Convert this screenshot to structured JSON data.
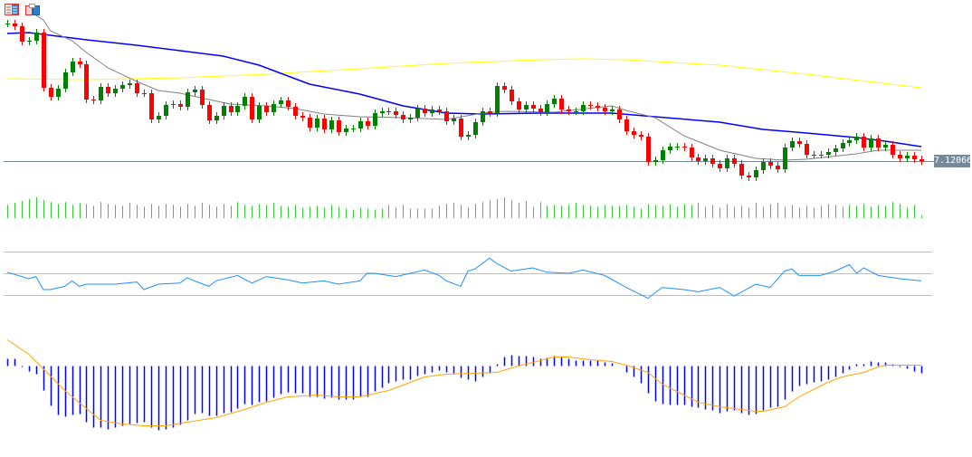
{
  "colors": {
    "bull": "#008000",
    "bear": "#ff0000",
    "ma_fast": "#808080",
    "ma_mid": "#0000ff",
    "ma_long": "#ffff00",
    "volume": "#32cd32",
    "rsi": "#1e90ff",
    "rsi_levels": "#c0c0c0",
    "macd_hist": "#0000ff",
    "macd_signal": "#ffa500",
    "price_line": "#778899"
  },
  "toolbar": {
    "icons": [
      "chart-window-icon",
      "tile-windows-icon"
    ]
  },
  "chart_data": {
    "type": "candlestick",
    "main": {
      "ylim": [
        7.1123,
        7.1563
      ],
      "current_price_label": "7.12066",
      "current_price": 7.12066,
      "close": [
        7.1511,
        7.1505,
        7.1471,
        7.1473,
        7.1491,
        7.1369,
        7.1349,
        7.1367,
        7.1403,
        7.1427,
        7.1421,
        7.1343,
        7.1341,
        7.1371,
        7.1357,
        7.1367,
        7.1375,
        7.1379,
        7.1357,
        7.1357,
        7.1299,
        7.1307,
        7.1331,
        7.1333,
        7.1327,
        7.1359,
        7.1365,
        7.1331,
        7.1297,
        7.1307,
        7.1329,
        7.1315,
        7.1329,
        7.1349,
        7.1299,
        7.1329,
        7.1315,
        7.1333,
        7.1341,
        7.1327,
        7.1307,
        7.1303,
        7.1281,
        7.1301,
        7.1277,
        7.1297,
        7.1271,
        7.1279,
        7.1279,
        7.1295,
        7.1285,
        7.1313,
        7.1317,
        7.1317,
        7.1309,
        7.1299,
        7.1303,
        7.1323,
        7.1313,
        7.1321,
        7.1317,
        7.1295,
        7.1301,
        7.1261,
        7.1265,
        7.1293,
        7.1317,
        7.1313,
        7.1373,
        7.1365,
        7.1339,
        7.1321,
        7.1331,
        7.1323,
        7.1315,
        7.1333,
        7.1345,
        7.1321,
        7.1317,
        7.1317,
        7.1331,
        7.1329,
        7.1325,
        7.1317,
        7.1321,
        7.1299,
        7.1273,
        7.1265,
        7.1261,
        7.1205,
        7.1209,
        7.1231,
        7.1239,
        7.1239,
        7.1237,
        7.1215,
        7.1207,
        7.1213,
        7.1201,
        7.1191,
        7.1213,
        7.1201,
        7.1175,
        7.1171,
        7.1187,
        7.1205,
        7.1197,
        7.1189,
        7.1237,
        7.1251,
        7.1245,
        7.1221,
        7.1221,
        7.1221,
        7.1227,
        7.1235,
        7.1247,
        7.1253,
        7.1261,
        7.1237,
        7.1257,
        7.1237,
        7.1243,
        7.1221,
        7.1213,
        7.1219,
        7.1211,
        7.12066
      ],
      "ma_fast": [
        [
          4,
          7.1529
        ],
        [
          5,
          7.1519
        ],
        [
          6,
          7.1495
        ],
        [
          9,
          7.1473
        ],
        [
          11,
          7.1447
        ],
        [
          14,
          7.1413
        ],
        [
          18,
          7.1383
        ],
        [
          21,
          7.1363
        ],
        [
          24,
          7.1357
        ],
        [
          28,
          7.1343
        ],
        [
          31,
          7.1333
        ],
        [
          36,
          7.1329
        ],
        [
          40,
          7.1323
        ],
        [
          44,
          7.1311
        ],
        [
          49,
          7.1305
        ],
        [
          55,
          7.1303
        ],
        [
          61,
          7.1299
        ],
        [
          66,
          7.1313
        ],
        [
          69,
          7.1317
        ],
        [
          76,
          7.1315
        ],
        [
          84,
          7.1329
        ],
        [
          86,
          7.1319
        ],
        [
          90,
          7.1303
        ],
        [
          94,
          7.1263
        ],
        [
          99,
          7.1231
        ],
        [
          104,
          7.1213
        ],
        [
          108,
          7.1209
        ],
        [
          111,
          7.1211
        ],
        [
          118,
          7.1223
        ],
        [
          121,
          7.1231
        ],
        [
          127,
          7.1231
        ]
      ],
      "ma_mid": [
        [
          0,
          7.1489
        ],
        [
          3,
          7.1491
        ],
        [
          5,
          7.1487
        ],
        [
          11,
          7.1475
        ],
        [
          18,
          7.1463
        ],
        [
          24,
          7.1451
        ],
        [
          30,
          7.1439
        ],
        [
          35,
          7.1419
        ],
        [
          39,
          7.1395
        ],
        [
          42,
          7.1377
        ],
        [
          49,
          7.1355
        ],
        [
          55,
          7.1329
        ],
        [
          61,
          7.1313
        ],
        [
          66,
          7.1311
        ],
        [
          74,
          7.1313
        ],
        [
          84,
          7.1313
        ],
        [
          90,
          7.1305
        ],
        [
          99,
          7.1293
        ],
        [
          105,
          7.1277
        ],
        [
          111,
          7.1269
        ],
        [
          118,
          7.1259
        ],
        [
          122,
          7.1251
        ],
        [
          127,
          7.1239
        ]
      ],
      "ma_long": [
        [
          0,
          7.1389
        ],
        [
          11,
          7.1387
        ],
        [
          24,
          7.1391
        ],
        [
          36,
          7.1399
        ],
        [
          49,
          7.1411
        ],
        [
          61,
          7.1423
        ],
        [
          74,
          7.1431
        ],
        [
          80,
          7.1433
        ],
        [
          86,
          7.1431
        ],
        [
          99,
          7.1419
        ],
        [
          111,
          7.1399
        ],
        [
          127,
          7.1369
        ]
      ]
    },
    "volume": [
      14,
      16,
      18,
      20,
      22,
      19,
      17,
      15,
      17,
      14,
      16,
      15,
      13,
      17,
      15,
      14,
      13,
      16,
      14,
      12,
      15,
      13,
      15,
      14,
      12,
      15,
      13,
      16,
      14,
      12,
      15,
      13,
      17,
      14,
      13,
      15,
      14,
      16,
      13,
      12,
      14,
      11,
      12,
      13,
      11,
      14,
      12,
      10,
      9,
      11,
      10,
      9,
      10,
      14,
      11,
      14,
      10,
      10,
      10,
      10,
      13,
      15,
      16,
      14,
      11,
      15,
      17,
      19,
      20,
      22,
      19,
      16,
      18,
      12,
      17,
      13,
      14,
      13,
      14,
      16,
      14,
      13,
      12,
      14,
      13,
      13,
      14,
      12,
      10,
      15,
      14,
      13,
      15,
      12,
      15,
      14,
      16,
      12,
      14,
      11,
      15,
      12,
      13,
      11,
      16,
      12,
      15,
      16,
      12,
      14,
      11,
      13,
      11,
      13,
      15,
      14,
      12,
      14,
      13,
      15,
      12,
      14,
      13,
      17,
      15,
      11,
      14,
      3
    ],
    "rsi": {
      "levels": [
        70,
        50,
        30
      ],
      "ylim": [
        10,
        90
      ],
      "points": [
        [
          0,
          51
        ],
        [
          3,
          45
        ],
        [
          4,
          47
        ],
        [
          5,
          35
        ],
        [
          6,
          35
        ],
        [
          8,
          38
        ],
        [
          9,
          43
        ],
        [
          10,
          38
        ],
        [
          11,
          40
        ],
        [
          15,
          40
        ],
        [
          18,
          42
        ],
        [
          19,
          35
        ],
        [
          21,
          40
        ],
        [
          24,
          41
        ],
        [
          25,
          46
        ],
        [
          26,
          43
        ],
        [
          28,
          38
        ],
        [
          29,
          43
        ],
        [
          32,
          48
        ],
        [
          34,
          41
        ],
        [
          36,
          47
        ],
        [
          39,
          44
        ],
        [
          41,
          41
        ],
        [
          44,
          43
        ],
        [
          46,
          40
        ],
        [
          49,
          43
        ],
        [
          50,
          50
        ],
        [
          51,
          50
        ],
        [
          54,
          47
        ],
        [
          58,
          53
        ],
        [
          60,
          48
        ],
        [
          61,
          43
        ],
        [
          63,
          38
        ],
        [
          64,
          52
        ],
        [
          65,
          54
        ],
        [
          67,
          64
        ],
        [
          68,
          59
        ],
        [
          70,
          52
        ],
        [
          73,
          55
        ],
        [
          75,
          51
        ],
        [
          78,
          50
        ],
        [
          80,
          53
        ],
        [
          83,
          48
        ],
        [
          86,
          37
        ],
        [
          89,
          27
        ],
        [
          91,
          37
        ],
        [
          94,
          35
        ],
        [
          96,
          33
        ],
        [
          99,
          37
        ],
        [
          101,
          29
        ],
        [
          104,
          40
        ],
        [
          106,
          37
        ],
        [
          108,
          52
        ],
        [
          109,
          54
        ],
        [
          110,
          48
        ],
        [
          113,
          48
        ],
        [
          115,
          52
        ],
        [
          117,
          58
        ],
        [
          118,
          50
        ],
        [
          119,
          55
        ],
        [
          121,
          48
        ],
        [
          124,
          45
        ],
        [
          127,
          43
        ]
      ]
    },
    "macd": {
      "unit": "1e-5",
      "histogram": [
        8,
        8,
        -1,
        -6,
        -9,
        -27,
        -44,
        -54,
        -56,
        -54,
        -53,
        -62,
        -68,
        -68,
        -70,
        -68,
        -66,
        -64,
        -63,
        -62,
        -68,
        -71,
        -70,
        -68,
        -65,
        -60,
        -53,
        -52,
        -55,
        -55,
        -52,
        -51,
        -47,
        -42,
        -43,
        -40,
        -39,
        -35,
        -31,
        -29,
        -30,
        -30,
        -34,
        -34,
        -36,
        -35,
        -37,
        -37,
        -37,
        -34,
        -34,
        -28,
        -24,
        -19,
        -17,
        -15,
        -15,
        -11,
        -9,
        -7,
        -5,
        -7,
        -8,
        -13,
        -15,
        -17,
        -12,
        -8,
        2,
        10,
        12,
        11,
        11,
        10,
        8,
        9,
        11,
        10,
        8,
        6,
        6,
        6,
        6,
        4,
        3,
        0,
        -7,
        -12,
        -19,
        -30,
        -39,
        -42,
        -43,
        -43,
        -43,
        -45,
        -46,
        -48,
        -49,
        -52,
        -50,
        -49,
        -52,
        -54,
        -53,
        -49,
        -46,
        -45,
        -37,
        -28,
        -22,
        -20,
        -18,
        -17,
        -15,
        -12,
        -8,
        -4,
        2,
        2,
        5,
        4,
        4,
        2,
        -1,
        -3,
        -6,
        -8
      ],
      "signal": [
        [
          0,
          29
        ],
        [
          3,
          13
        ],
        [
          5,
          -3
        ],
        [
          8,
          -27
        ],
        [
          11,
          -47
        ],
        [
          13,
          -60
        ],
        [
          16,
          -64
        ],
        [
          19,
          -66
        ],
        [
          22,
          -66
        ],
        [
          25,
          -62
        ],
        [
          29,
          -57
        ],
        [
          33,
          -48
        ],
        [
          36,
          -40
        ],
        [
          39,
          -34
        ],
        [
          43,
          -32
        ],
        [
          46,
          -34
        ],
        [
          49,
          -34
        ],
        [
          53,
          -27
        ],
        [
          58,
          -12
        ],
        [
          61,
          -9
        ],
        [
          68,
          -7
        ],
        [
          71,
          0
        ],
        [
          76,
          10
        ],
        [
          78,
          10
        ],
        [
          81,
          7
        ],
        [
          84,
          5
        ],
        [
          86,
          1
        ],
        [
          89,
          -7
        ],
        [
          91,
          -20
        ],
        [
          94,
          -32
        ],
        [
          96,
          -40
        ],
        [
          99,
          -45
        ],
        [
          101,
          -47
        ],
        [
          104,
          -50
        ],
        [
          105,
          -50
        ],
        [
          108,
          -45
        ],
        [
          110,
          -34
        ],
        [
          114,
          -18
        ],
        [
          116,
          -12
        ],
        [
          119,
          -7
        ],
        [
          121,
          -1
        ],
        [
          122,
          1
        ],
        [
          127,
          1
        ]
      ]
    }
  }
}
